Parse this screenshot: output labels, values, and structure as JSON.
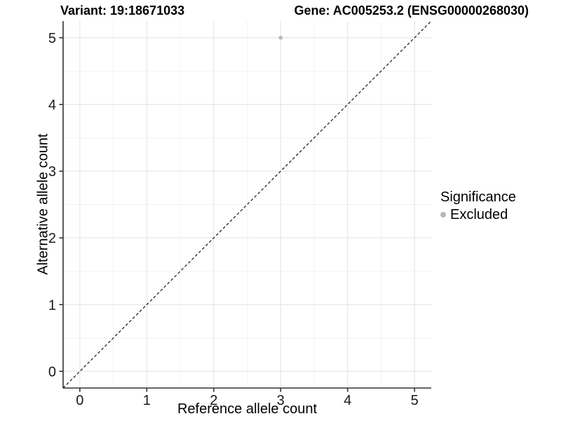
{
  "chart_data": {
    "type": "scatter",
    "title_left": "Variant: 19:18671033",
    "title_right": "Gene: AC005253.2 (ENSG00000268030)",
    "xlabel": "Reference allele count",
    "ylabel": "Alternative allele count",
    "xlim": [
      -0.25,
      5.25
    ],
    "ylim": [
      -0.25,
      5.25
    ],
    "xticks": [
      0,
      1,
      2,
      3,
      4,
      5
    ],
    "yticks": [
      0,
      1,
      2,
      3,
      4,
      5
    ],
    "grid": {
      "major": true,
      "minor": true
    },
    "points": [
      {
        "x": 3,
        "y": 5,
        "series": "Excluded"
      }
    ],
    "identity_line": {
      "style": "dashed",
      "color": "#000000"
    },
    "legend": {
      "title": "Significance",
      "position": "right",
      "items": [
        {
          "label": "Excluded",
          "color": "#b8b8b8"
        }
      ]
    },
    "colors": {
      "background": "#ffffff",
      "grid_major": "#e6e6e6",
      "grid_minor": "#f2f2f2",
      "axis": "#333333",
      "point": "#b8b8b8",
      "tick_label": "#1a1a1a"
    }
  }
}
